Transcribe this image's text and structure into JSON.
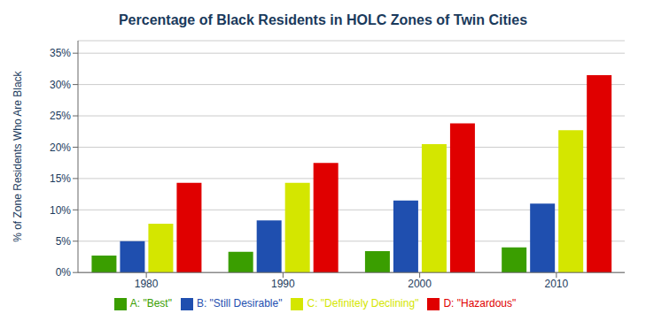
{
  "chart_data": {
    "type": "bar",
    "title": "Percentage of Black Residents in HOLC Zones of Twin Cities",
    "ylabel": "% of Zone Residents Who Are Black",
    "categories": [
      "1980",
      "1990",
      "2000",
      "2010"
    ],
    "series": [
      {
        "name": "A: \"Best\"",
        "color": "#3a9e00",
        "values": [
          2.7,
          3.3,
          3.4,
          4.0
        ]
      },
      {
        "name": "B: \"Still Desirable\"",
        "color": "#1f4faf",
        "values": [
          5.0,
          8.3,
          11.5,
          11.0
        ]
      },
      {
        "name": "C: \"Definitely Declining\"",
        "color": "#d4e600",
        "values": [
          7.8,
          14.3,
          20.5,
          22.7
        ]
      },
      {
        "name": "D: \"Hazardous\"",
        "color": "#e00000",
        "values": [
          14.3,
          17.5,
          23.8,
          31.5
        ]
      }
    ],
    "ylim": [
      0,
      37
    ],
    "yticks": [
      {
        "value": 0,
        "label": "0%"
      },
      {
        "value": 5,
        "label": "5%"
      },
      {
        "value": 10,
        "label": "10%"
      },
      {
        "value": 15,
        "label": "15%"
      },
      {
        "value": 20,
        "label": "20%"
      },
      {
        "value": 25,
        "label": "25%"
      },
      {
        "value": 30,
        "label": "30%"
      },
      {
        "value": 35,
        "label": "35%"
      }
    ],
    "grid": true,
    "legend": "bottom"
  }
}
